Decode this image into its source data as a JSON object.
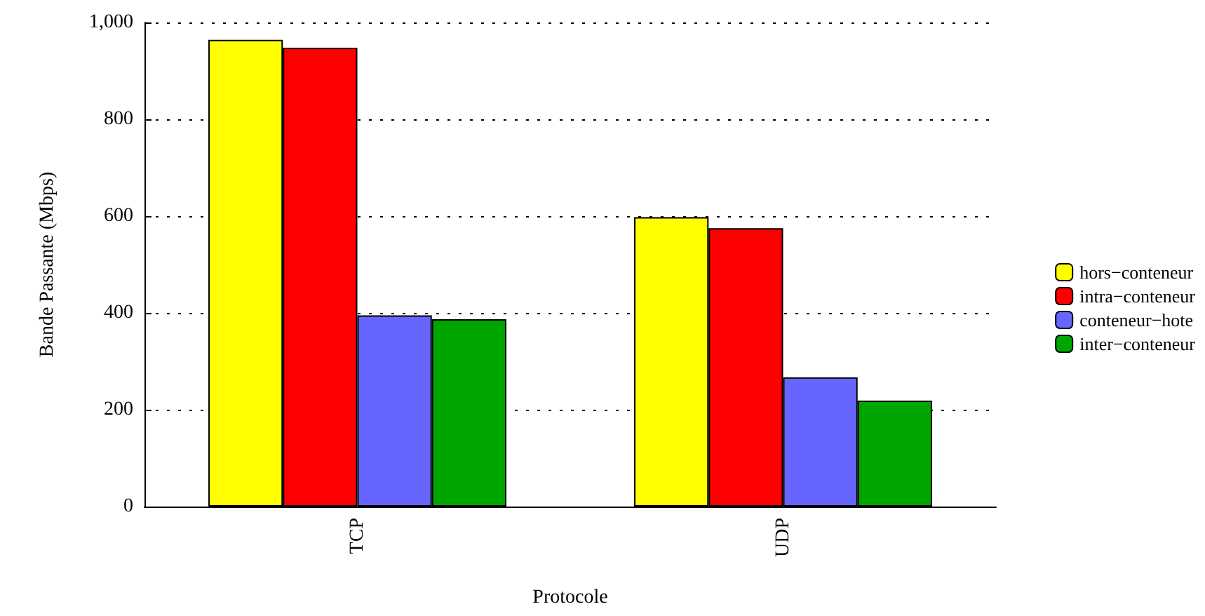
{
  "chart_data": {
    "type": "bar",
    "xlabel": "Protocole",
    "ylabel": "Bande Passante (Mbps)",
    "categories": [
      "TCP",
      "UDP"
    ],
    "series": [
      {
        "name": "hors−conteneur",
        "color": "#ffff00",
        "values": [
          964,
          598
        ]
      },
      {
        "name": "intra−conteneur",
        "color": "#ff0000",
        "values": [
          948,
          575
        ]
      },
      {
        "name": "conteneur−hote",
        "color": "#6666ff",
        "values": [
          395,
          267
        ]
      },
      {
        "name": "inter−conteneur",
        "color": "#00a600",
        "values": [
          387,
          219
        ]
      }
    ],
    "ylim": [
      0,
      1000
    ],
    "yticks": [
      0,
      200,
      400,
      600,
      800,
      {
        "value": 1000,
        "label": "1,000"
      }
    ],
    "grid": "y",
    "legend": "right"
  }
}
